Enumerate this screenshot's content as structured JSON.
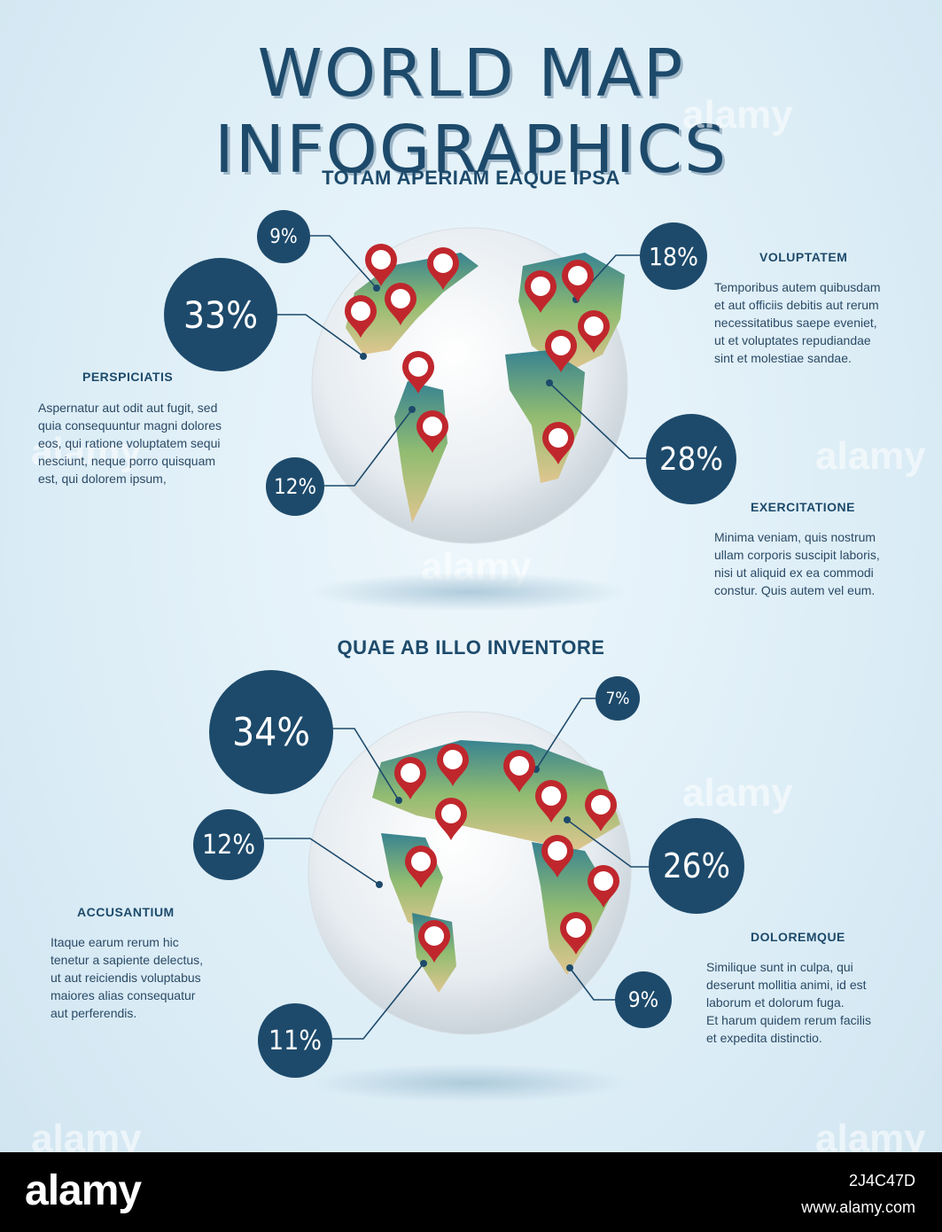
{
  "title": "WORLD MAP INFOGRAPHICS",
  "section1": {
    "subtitle": "TOTAM APERIAM EAQUE IPSA",
    "stats": [
      "9%",
      "33%",
      "12%",
      "18%",
      "28%"
    ],
    "blocks": [
      {
        "heading": "PERSPICIATIS",
        "text": "Aspernatur aut odit aut fugit, sed\nquia consequuntur magni dolores\neos, qui ratione voluptatem sequi\nnesciunt, neque porro quisquam\nest, qui dolorem ipsum,"
      },
      {
        "heading": "VOLUPTATEM",
        "text": "Temporibus autem quibusdam\net aut officiis debitis aut rerum\nnecessitatibus saepe eveniet,\nut et voluptates repudiandae\nsint et molestiae sandae."
      },
      {
        "heading": "EXERCITATIONE",
        "text": "Minima veniam, quis nostrum\nullam corporis suscipit laboris,\nnisi ut aliquid ex ea commodi\nconstur. Quis autem vel eum."
      }
    ]
  },
  "section2": {
    "subtitle": "QUAE AB ILLO INVENTORE",
    "stats": [
      "34%",
      "7%",
      "12%",
      "26%",
      "11%",
      "9%"
    ],
    "blocks": [
      {
        "heading": "ACCUSANTIUM",
        "text": "Itaque earum rerum hic\ntenetur a sapiente delectus,\nut aut reiciendis voluptabus\nmaiores alias consequatur\naut perferendis."
      },
      {
        "heading": "DOLOREMQUE",
        "text": "Similique sunt in culpa, qui\n deserunt mollitia animi, id est\nlaborum et dolorum fuga.\nEt harum quidem rerum facilis\net expedita distinctio."
      }
    ]
  },
  "watermark": "alamy",
  "footer": {
    "logo": "alamy",
    "code": "2J4C47D",
    "url": "www.alamy.com"
  },
  "colors": {
    "navy": "#1d4a6b",
    "pin": "#c0272d",
    "land_green": "#8fb86a",
    "ocean": "#ffffff"
  }
}
